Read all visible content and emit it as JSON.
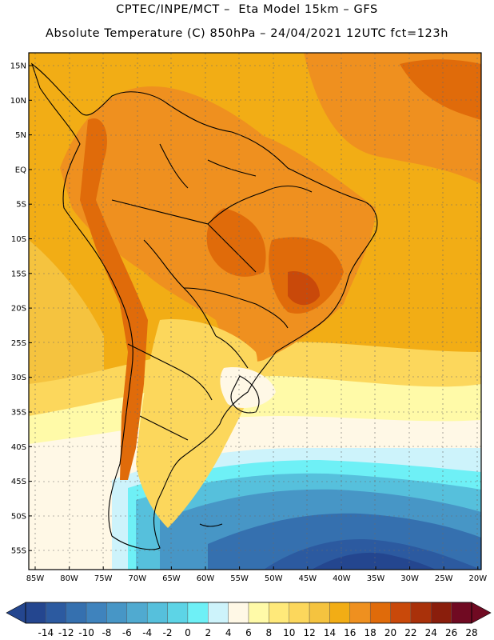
{
  "header": {
    "line1": "CPTEC/INPE/MCT –  Eta Model 15km – GFS",
    "line2": "Absolute Temperature (C) 850hPa – 24/04/2021 12UTC fct=123h"
  },
  "map": {
    "lat_labels": [
      "15N",
      "10N",
      "5N",
      "EQ",
      "5S",
      "10S",
      "15S",
      "20S",
      "25S",
      "30S",
      "35S",
      "40S",
      "45S",
      "50S",
      "55S"
    ],
    "lon_labels": [
      "85W",
      "80W",
      "75W",
      "70W",
      "65W",
      "60W",
      "55W",
      "50W",
      "45W",
      "40W",
      "35W",
      "30W",
      "25W",
      "20W"
    ]
  },
  "colorbar": {
    "labels": [
      "-14",
      "-12",
      "-10",
      "-8",
      "-6",
      "-4",
      "-2",
      "0",
      "2",
      "4",
      "6",
      "8",
      "10",
      "12",
      "14",
      "16",
      "18",
      "20",
      "22",
      "24",
      "26",
      "28"
    ],
    "colors": [
      "#24468f",
      "#2c5aa0",
      "#3570af",
      "#3f83bd",
      "#4796c6",
      "#50aad0",
      "#56c0dc",
      "#5dd4e6",
      "#6ef0f6",
      "#cdf3fb",
      "#fff8e6",
      "#fffaa8",
      "#ffe97a",
      "#fcd75c",
      "#f5c33f",
      "#f2ad15",
      "#ef901f",
      "#e06b0a",
      "#c9490a",
      "#a9310a",
      "#8a1e0c",
      "#700a22"
    ],
    "low_arrow_color": "#24468f",
    "high_arrow_color": "#700a22"
  },
  "legend_palette": {
    "ocean_warm": "#f2ad15",
    "land_hot": "#e06b0a",
    "frame": "#000000"
  }
}
